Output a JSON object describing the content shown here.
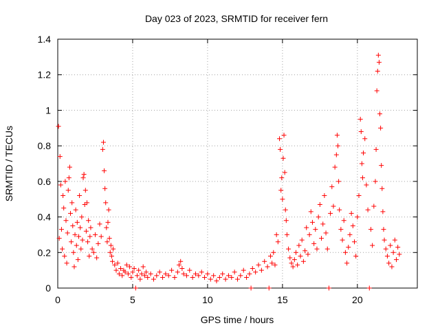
{
  "chart_data": {
    "type": "scatter",
    "title": "Day 023 of 2023, SRMTID for receiver fern",
    "xlabel": "GPS time / hours",
    "ylabel": "SRMTID / TECUs",
    "xlim": [
      0,
      24
    ],
    "ylim": [
      0,
      1.4
    ],
    "xticks": [
      0,
      5,
      10,
      15,
      20
    ],
    "xtick_labels": [
      "0",
      "5",
      "10",
      "15",
      "20"
    ],
    "yticks": [
      0,
      0.2,
      0.4,
      0.6,
      0.8,
      1.0,
      1.2,
      1.4
    ],
    "ytick_labels": [
      "0",
      "0.2",
      "0.4",
      "0.6",
      "0.8",
      "1",
      "1.2",
      "1.4"
    ],
    "grid": true,
    "marker": "+",
    "color": "#ff0000",
    "series": [
      {
        "name": "SRMTID",
        "points": [
          [
            0.05,
            0.91
          ],
          [
            0.1,
            0.28
          ],
          [
            0.15,
            0.74
          ],
          [
            0.2,
            0.58
          ],
          [
            0.25,
            0.33
          ],
          [
            0.3,
            0.22
          ],
          [
            0.35,
            0.52
          ],
          [
            0.4,
            0.45
          ],
          [
            0.45,
            0.18
          ],
          [
            0.5,
            0.6
          ],
          [
            0.55,
            0.38
          ],
          [
            0.6,
            0.14
          ],
          [
            0.65,
            0.31
          ],
          [
            0.7,
            0.55
          ],
          [
            0.75,
            0.62
          ],
          [
            0.8,
            0.68
          ],
          [
            0.85,
            0.42
          ],
          [
            0.9,
            0.26
          ],
          [
            0.95,
            0.48
          ],
          [
            1.0,
            0.35
          ],
          [
            1.05,
            0.2
          ],
          [
            1.1,
            0.12
          ],
          [
            1.15,
            0.3
          ],
          [
            1.2,
            0.44
          ],
          [
            1.25,
            0.24
          ],
          [
            1.3,
            0.37
          ],
          [
            1.35,
            0.16
          ],
          [
            1.4,
            0.29
          ],
          [
            1.45,
            0.52
          ],
          [
            1.5,
            0.34
          ],
          [
            1.55,
            0.22
          ],
          [
            1.6,
            0.4
          ],
          [
            1.65,
            0.27
          ],
          [
            1.7,
            0.62
          ],
          [
            1.75,
            0.64
          ],
          [
            1.8,
            0.47
          ],
          [
            1.85,
            0.55
          ],
          [
            1.9,
            0.32
          ],
          [
            1.95,
            0.48
          ],
          [
            2.0,
            0.26
          ],
          [
            2.05,
            0.38
          ],
          [
            2.1,
            0.18
          ],
          [
            2.15,
            0.29
          ],
          [
            2.2,
            0.34
          ],
          [
            2.3,
            0.22
          ],
          [
            2.4,
            0.2
          ],
          [
            2.5,
            0.3
          ],
          [
            2.6,
            0.17
          ],
          [
            2.7,
            0.25
          ],
          [
            2.8,
            0.36
          ],
          [
            2.9,
            0.29
          ],
          [
            3.0,
            0.78
          ],
          [
            3.05,
            0.82
          ],
          [
            3.1,
            0.66
          ],
          [
            3.15,
            0.56
          ],
          [
            3.2,
            0.48
          ],
          [
            3.25,
            0.34
          ],
          [
            3.3,
            0.26
          ],
          [
            3.35,
            0.37
          ],
          [
            3.4,
            0.44
          ],
          [
            3.45,
            0.28
          ],
          [
            3.5,
            0.2
          ],
          [
            3.55,
            0.24
          ],
          [
            3.6,
            0.18
          ],
          [
            3.65,
            0.15
          ],
          [
            3.7,
            0.22
          ],
          [
            3.8,
            0.13
          ],
          [
            3.9,
            0.1
          ],
          [
            4.0,
            0.14
          ],
          [
            4.1,
            0.08
          ],
          [
            4.2,
            0.11
          ],
          [
            4.3,
            0.07
          ],
          [
            4.4,
            0.1
          ],
          [
            4.5,
            0.09
          ],
          [
            4.6,
            0.13
          ],
          [
            4.7,
            0.08
          ],
          [
            4.8,
            0.12
          ],
          [
            4.9,
            0.06
          ],
          [
            5.0,
            0.09
          ],
          [
            5.1,
            0.11
          ],
          [
            5.2,
            0.0
          ],
          [
            5.3,
            0.07
          ],
          [
            5.4,
            0.1
          ],
          [
            5.5,
            0.05
          ],
          [
            5.6,
            0.08
          ],
          [
            5.7,
            0.12
          ],
          [
            5.8,
            0.07
          ],
          [
            5.9,
            0.09
          ],
          [
            6.0,
            0.06
          ],
          [
            6.2,
            0.08
          ],
          [
            6.4,
            0.05
          ],
          [
            6.6,
            0.07
          ],
          [
            6.8,
            0.09
          ],
          [
            7.0,
            0.06
          ],
          [
            7.2,
            0.08
          ],
          [
            7.4,
            0.07
          ],
          [
            7.6,
            0.1
          ],
          [
            7.8,
            0.06
          ],
          [
            8.0,
            0.09
          ],
          [
            8.1,
            0.13
          ],
          [
            8.2,
            0.15
          ],
          [
            8.3,
            0.11
          ],
          [
            8.4,
            0.08
          ],
          [
            8.6,
            0.07
          ],
          [
            8.8,
            0.1
          ],
          [
            9.0,
            0.06
          ],
          [
            9.2,
            0.08
          ],
          [
            9.4,
            0.07
          ],
          [
            9.6,
            0.09
          ],
          [
            9.8,
            0.06
          ],
          [
            10.0,
            0.08
          ],
          [
            10.2,
            0.05
          ],
          [
            10.4,
            0.07
          ],
          [
            10.6,
            0.04
          ],
          [
            10.8,
            0.06
          ],
          [
            11.0,
            0.08
          ],
          [
            11.2,
            0.05
          ],
          [
            11.4,
            0.07
          ],
          [
            11.6,
            0.06
          ],
          [
            11.8,
            0.09
          ],
          [
            12.0,
            0.05
          ],
          [
            12.2,
            0.07
          ],
          [
            12.4,
            0.1
          ],
          [
            12.6,
            0.06
          ],
          [
            12.8,
            0.08
          ],
          [
            12.9,
            0.0
          ],
          [
            13.0,
            0.11
          ],
          [
            13.2,
            0.09
          ],
          [
            13.4,
            0.13
          ],
          [
            13.6,
            0.1
          ],
          [
            13.8,
            0.15
          ],
          [
            14.0,
            0.12
          ],
          [
            14.1,
            0.0
          ],
          [
            14.2,
            0.18
          ],
          [
            14.3,
            0.14
          ],
          [
            14.4,
            0.2
          ],
          [
            14.5,
            0.13
          ],
          [
            14.6,
            0.3
          ],
          [
            14.7,
            0.26
          ],
          [
            14.8,
            0.84
          ],
          [
            14.85,
            0.78
          ],
          [
            14.9,
            0.55
          ],
          [
            14.95,
            0.62
          ],
          [
            15.0,
            0.5
          ],
          [
            15.05,
            0.73
          ],
          [
            15.1,
            0.86
          ],
          [
            15.15,
            0.65
          ],
          [
            15.2,
            0.44
          ],
          [
            15.25,
            0.38
          ],
          [
            15.3,
            0.3
          ],
          [
            15.4,
            0.22
          ],
          [
            15.5,
            0.17
          ],
          [
            15.6,
            0.14
          ],
          [
            15.7,
            0.12
          ],
          [
            15.8,
            0.16
          ],
          [
            15.9,
            0.2
          ],
          [
            16.0,
            0.13
          ],
          [
            16.1,
            0.24
          ],
          [
            16.2,
            0.18
          ],
          [
            16.3,
            0.27
          ],
          [
            16.4,
            0.15
          ],
          [
            16.5,
            0.21
          ],
          [
            16.6,
            0.34
          ],
          [
            16.7,
            0.19
          ],
          [
            16.8,
            0.3
          ],
          [
            16.9,
            0.43
          ],
          [
            17.0,
            0.37
          ],
          [
            17.1,
            0.25
          ],
          [
            17.2,
            0.33
          ],
          [
            17.3,
            0.22
          ],
          [
            17.4,
            0.4
          ],
          [
            17.5,
            0.47
          ],
          [
            17.6,
            0.28
          ],
          [
            17.7,
            0.36
          ],
          [
            17.8,
            0.52
          ],
          [
            17.9,
            0.31
          ],
          [
            18.0,
            0.22
          ],
          [
            18.1,
            0.0
          ],
          [
            18.2,
            0.42
          ],
          [
            18.3,
            0.57
          ],
          [
            18.4,
            0.46
          ],
          [
            18.5,
            0.68
          ],
          [
            18.6,
            0.75
          ],
          [
            18.65,
            0.86
          ],
          [
            18.7,
            0.8
          ],
          [
            18.75,
            0.6
          ],
          [
            18.8,
            0.44
          ],
          [
            18.9,
            0.33
          ],
          [
            19.0,
            0.27
          ],
          [
            19.1,
            0.38
          ],
          [
            19.2,
            0.2
          ],
          [
            19.3,
            0.14
          ],
          [
            19.4,
            0.23
          ],
          [
            19.5,
            0.3
          ],
          [
            19.6,
            0.42
          ],
          [
            19.7,
            0.35
          ],
          [
            19.8,
            0.26
          ],
          [
            19.9,
            0.18
          ],
          [
            20.0,
            0.4
          ],
          [
            20.1,
            0.52
          ],
          [
            20.2,
            0.95
          ],
          [
            20.25,
            0.88
          ],
          [
            20.3,
            0.7
          ],
          [
            20.35,
            0.62
          ],
          [
            20.4,
            0.76
          ],
          [
            20.5,
            0.84
          ],
          [
            20.6,
            0.58
          ],
          [
            20.7,
            0.44
          ],
          [
            20.8,
            0.0
          ],
          [
            20.9,
            0.33
          ],
          [
            21.0,
            0.24
          ],
          [
            21.1,
            0.46
          ],
          [
            21.2,
            0.6
          ],
          [
            21.25,
            0.78
          ],
          [
            21.3,
            1.11
          ],
          [
            21.35,
            1.22
          ],
          [
            21.4,
            1.31
          ],
          [
            21.45,
            1.27
          ],
          [
            21.5,
            0.98
          ],
          [
            21.55,
            0.9
          ],
          [
            21.6,
            0.69
          ],
          [
            21.65,
            0.56
          ],
          [
            21.7,
            0.43
          ],
          [
            21.75,
            0.33
          ],
          [
            21.8,
            0.27
          ],
          [
            21.9,
            0.22
          ],
          [
            22.0,
            0.18
          ],
          [
            22.1,
            0.14
          ],
          [
            22.2,
            0.24
          ],
          [
            22.3,
            0.12
          ],
          [
            22.4,
            0.2
          ],
          [
            22.5,
            0.27
          ],
          [
            22.6,
            0.16
          ],
          [
            22.7,
            0.23
          ],
          [
            22.8,
            0.19
          ]
        ]
      }
    ]
  }
}
